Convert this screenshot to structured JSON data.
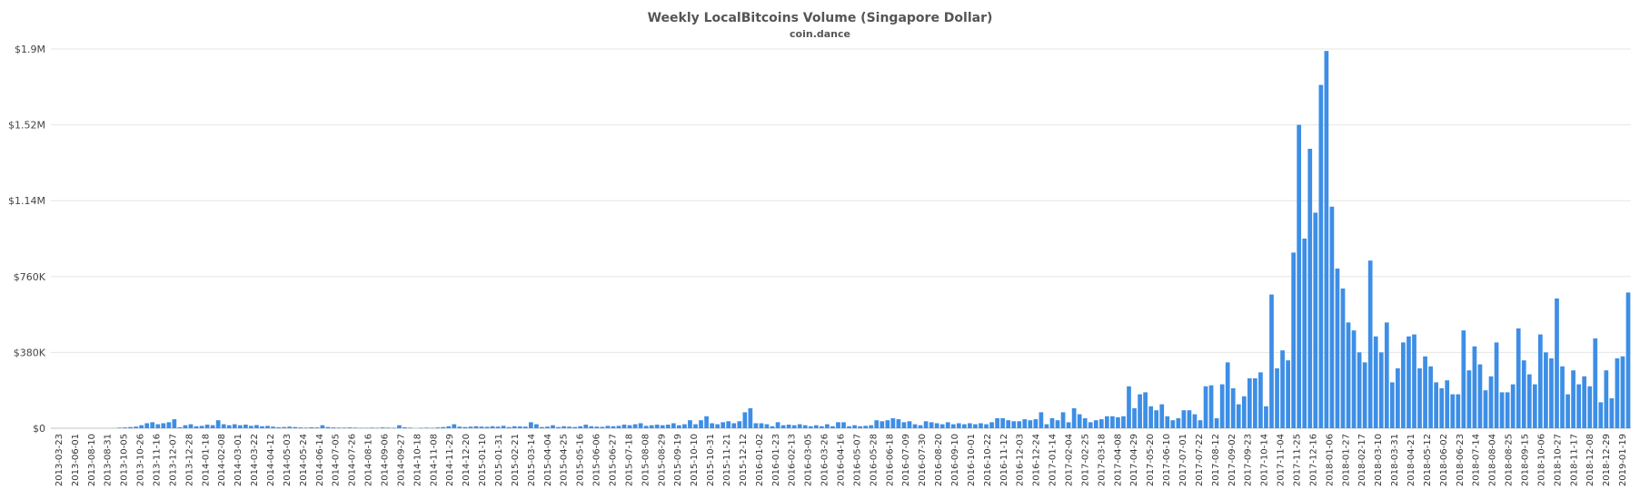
{
  "chart_data": {
    "type": "bar",
    "title": "Weekly LocalBitcoins Volume (Singapore Dollar)",
    "subtitle": "coin.dance",
    "xlabel": "",
    "ylabel": "",
    "ylim": [
      0,
      1900000
    ],
    "yticks": [
      0,
      380000,
      760000,
      1140000,
      1520000,
      1900000
    ],
    "ytick_labels": [
      "$0",
      "$380K",
      "$760K",
      "$1.14M",
      "$1.52M",
      "$1.9M"
    ],
    "grid": true,
    "legend": "none",
    "bar_color": "#3d8ee6",
    "x_tick_labels": [
      "2013-03-23",
      "2013-06-01",
      "2013-08-10",
      "2013-08-31",
      "2013-10-05",
      "2013-10-26",
      "2013-11-16",
      "2013-12-07",
      "2013-12-28",
      "2014-01-18",
      "2014-02-08",
      "2014-03-01",
      "2014-03-22",
      "2014-04-12",
      "2014-05-03",
      "2014-05-24",
      "2014-06-14",
      "2014-07-05",
      "2014-07-26",
      "2014-08-16",
      "2014-09-06",
      "2014-09-27",
      "2014-10-18",
      "2014-11-08",
      "2014-11-29",
      "2014-12-20",
      "2015-01-10",
      "2015-01-31",
      "2015-02-21",
      "2015-03-14",
      "2015-04-04",
      "2015-04-25",
      "2015-05-16",
      "2015-06-06",
      "2015-06-27",
      "2015-07-18",
      "2015-08-08",
      "2015-08-29",
      "2015-09-19",
      "2015-10-10",
      "2015-10-31",
      "2015-11-21",
      "2015-12-12",
      "2016-01-02",
      "2016-01-23",
      "2016-02-13",
      "2016-03-05",
      "2016-03-26",
      "2016-04-16",
      "2016-05-07",
      "2016-05-28",
      "2016-06-18",
      "2016-07-09",
      "2016-07-30",
      "2016-08-20",
      "2016-09-10",
      "2016-10-01",
      "2016-10-22",
      "2016-11-12",
      "2016-12-03",
      "2016-12-24",
      "2017-01-14",
      "2017-02-04",
      "2017-02-25",
      "2017-03-18",
      "2017-04-08",
      "2017-04-29",
      "2017-05-20",
      "2017-06-10",
      "2017-07-01",
      "2017-07-22",
      "2017-08-12",
      "2017-09-02",
      "2017-09-23",
      "2017-10-14",
      "2017-11-04",
      "2017-11-25",
      "2017-12-16",
      "2018-01-06",
      "2018-01-27",
      "2018-02-17",
      "2018-03-10",
      "2018-03-31",
      "2018-04-21",
      "2018-05-12",
      "2018-06-02",
      "2018-06-23",
      "2018-07-14",
      "2018-08-04",
      "2018-08-25",
      "2018-09-15",
      "2018-10-06",
      "2018-10-27",
      "2018-11-17",
      "2018-12-08",
      "2018-12-29",
      "2019-01-19"
    ],
    "values": [
      0,
      0,
      0,
      0,
      0,
      0,
      0,
      0,
      0,
      0,
      0,
      0,
      3000,
      4000,
      6000,
      8000,
      15000,
      25000,
      30000,
      20000,
      25000,
      30000,
      45000,
      5000,
      15000,
      20000,
      10000,
      12000,
      18000,
      15000,
      40000,
      20000,
      15000,
      20000,
      15000,
      18000,
      12000,
      16000,
      10000,
      12000,
      8000,
      5000,
      6000,
      8000,
      6000,
      4000,
      3000,
      5000,
      4000,
      15000,
      6000,
      4000,
      3000,
      3000,
      4000,
      3000,
      2000,
      2000,
      3000,
      2000,
      4000,
      3000,
      2000,
      15000,
      5000,
      3000,
      0,
      2000,
      3000,
      2000,
      4000,
      6000,
      10000,
      20000,
      8000,
      6000,
      8000,
      10000,
      8000,
      7000,
      10000,
      8000,
      12000,
      6000,
      10000,
      9000,
      8000,
      30000,
      20000,
      6000,
      8000,
      15000,
      6000,
      10000,
      8000,
      6000,
      10000,
      18000,
      10000,
      8000,
      7000,
      12000,
      10000,
      12000,
      18000,
      15000,
      20000,
      25000,
      12000,
      15000,
      18000,
      15000,
      18000,
      25000,
      15000,
      20000,
      40000,
      20000,
      40000,
      60000,
      25000,
      20000,
      30000,
      35000,
      25000,
      35000,
      80000,
      100000,
      25000,
      25000,
      20000,
      10000,
      30000,
      15000,
      18000,
      15000,
      20000,
      15000,
      10000,
      15000,
      10000,
      20000,
      10000,
      30000,
      30000,
      10000,
      15000,
      10000,
      12000,
      15000,
      40000,
      35000,
      40000,
      50000,
      45000,
      30000,
      35000,
      20000,
      15000,
      35000,
      30000,
      25000,
      20000,
      30000,
      20000,
      25000,
      20000,
      25000,
      20000,
      25000,
      20000,
      30000,
      50000,
      50000,
      40000,
      35000,
      35000,
      45000,
      40000,
      45000,
      80000,
      20000,
      50000,
      40000,
      80000,
      30000,
      100000,
      70000,
      50000,
      30000,
      40000,
      45000,
      60000,
      60000,
      55000,
      60000,
      210000,
      100000,
      170000,
      180000,
      110000,
      90000,
      120000,
      60000,
      40000,
      50000,
      90000,
      90000,
      70000,
      40000,
      210000,
      215000,
      50000,
      220000,
      330000,
      200000,
      120000,
      160000,
      250000,
      250000,
      280000,
      110000,
      670000,
      300000,
      390000,
      340000,
      880000,
      1520000,
      950000,
      1400000,
      1080000,
      1720000,
      1890000,
      1110000,
      800000,
      700000,
      530000,
      490000,
      380000,
      330000,
      840000,
      460000,
      380000,
      530000,
      230000,
      300000,
      430000,
      460000,
      470000,
      300000,
      360000,
      310000,
      230000,
      200000,
      240000,
      170000,
      170000,
      490000,
      290000,
      410000,
      320000,
      190000,
      260000,
      430000,
      180000,
      180000,
      220000,
      500000,
      340000,
      270000,
      220000,
      470000,
      380000,
      350000,
      650000,
      310000,
      170000,
      290000,
      220000,
      260000,
      210000,
      450000,
      130000,
      290000,
      150000,
      350000,
      360000,
      680000
    ]
  }
}
